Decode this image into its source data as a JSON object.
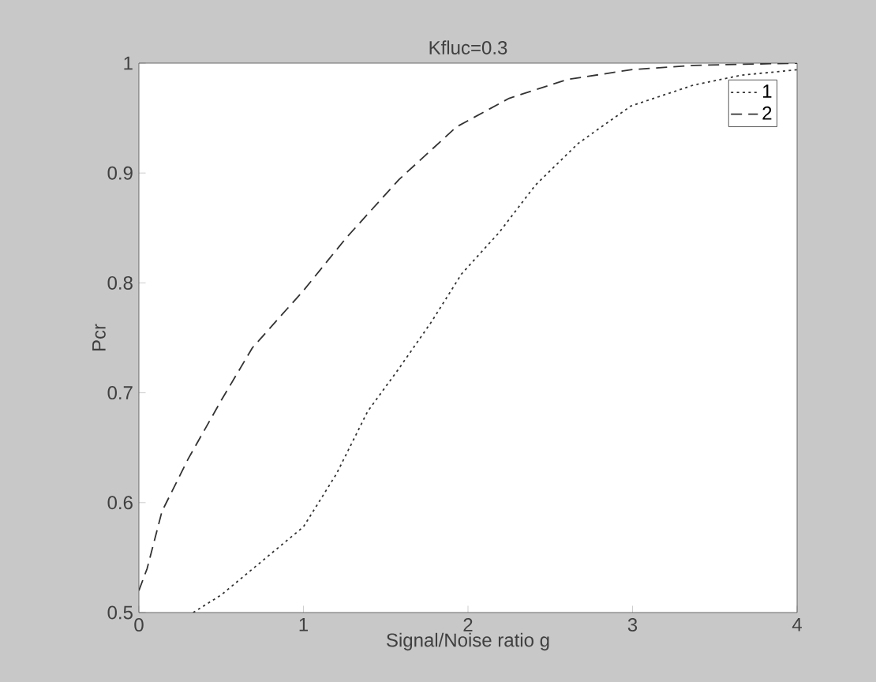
{
  "chart_data": {
    "type": "line",
    "title": "Kfluc=0.3",
    "xlabel": "Signal/Noise ratio g",
    "ylabel": "Pcr",
    "xlim": [
      0,
      4
    ],
    "ylim": [
      0.5,
      1
    ],
    "xticks": [
      0,
      1,
      2,
      3,
      4
    ],
    "yticks": [
      0.5,
      0.6,
      0.7,
      0.8,
      0.9,
      1
    ],
    "legend": "top right",
    "grid": false,
    "series": [
      {
        "name": "1",
        "color": "#333333",
        "line_style": "dotted",
        "x": [
          0.33,
          0.5,
          0.75,
          1.0,
          1.2,
          1.39,
          1.58,
          1.78,
          1.96,
          2.19,
          2.41,
          2.67,
          2.99,
          3.37,
          3.66,
          4.0
        ],
        "values": [
          0.5,
          0.516,
          0.547,
          0.578,
          0.626,
          0.683,
          0.722,
          0.765,
          0.808,
          0.846,
          0.889,
          0.927,
          0.961,
          0.98,
          0.989,
          0.994
        ]
      },
      {
        "name": "2",
        "color": "#333333",
        "line_style": "dashed",
        "x": [
          0,
          0.05,
          0.14,
          0.3,
          0.5,
          0.69,
          1.0,
          1.26,
          1.58,
          1.93,
          2.25,
          2.6,
          2.99,
          3.37,
          4.0
        ],
        "values": [
          0.52,
          0.54,
          0.592,
          0.64,
          0.693,
          0.741,
          0.793,
          0.841,
          0.894,
          0.942,
          0.968,
          0.985,
          0.994,
          0.998,
          1.0
        ]
      }
    ]
  }
}
